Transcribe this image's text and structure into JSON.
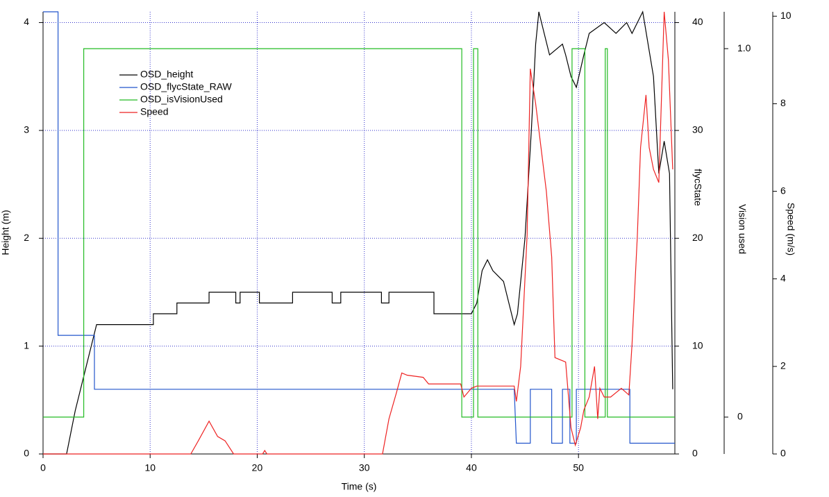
{
  "chart_data": {
    "type": "line",
    "xlabel": "Time (s)",
    "ylabel": "Height (m)",
    "y2label": "flycState",
    "y3label": "Vision used",
    "y4label": "Speed (m/s)",
    "xlim": [
      0,
      59
    ],
    "xticks": [
      0,
      10,
      20,
      30,
      40,
      50
    ],
    "ylim": [
      0,
      4.1
    ],
    "yticks": [
      0,
      1,
      2,
      3,
      4
    ],
    "y2lim": [
      0,
      41
    ],
    "y2ticks": [
      0,
      10,
      20,
      30,
      40
    ],
    "y3lim": [
      -0.1,
      1.1
    ],
    "y3ticks": [
      0,
      {
        "value": 1,
        "label": "1.0"
      }
    ],
    "y4lim": [
      0,
      10.1
    ],
    "y4ticks": [
      0,
      2,
      4,
      6,
      8,
      10
    ],
    "grid": true,
    "series": [
      {
        "name": "OSD_height",
        "color": "#000000",
        "axis": "y",
        "x": [
          0,
          2.2,
          3,
          4,
          5,
          10.3,
          10.3,
          12.5,
          12.5,
          15.5,
          15.5,
          18,
          18,
          18.4,
          18.4,
          20.2,
          20.2,
          23.3,
          23.3,
          27,
          27,
          27.8,
          27.8,
          31.6,
          31.6,
          32.3,
          32.3,
          36.5,
          36.5,
          40,
          40.5,
          41,
          41.5,
          42,
          43,
          43.5,
          44,
          44.3,
          45,
          45.6,
          46,
          46.3,
          46.8,
          47.3,
          48.5,
          48.8,
          49.3,
          49.8,
          50.5,
          51,
          52.4,
          53.5,
          54.5,
          55,
          56,
          57,
          57.5,
          58,
          58.5,
          58.8
        ],
        "values": [
          0,
          0,
          0.4,
          0.8,
          1.2,
          1.2,
          1.3,
          1.3,
          1.4,
          1.4,
          1.5,
          1.5,
          1.4,
          1.4,
          1.5,
          1.5,
          1.4,
          1.4,
          1.5,
          1.5,
          1.4,
          1.4,
          1.5,
          1.5,
          1.4,
          1.4,
          1.5,
          1.5,
          1.3,
          1.3,
          1.4,
          1.7,
          1.8,
          1.7,
          1.6,
          1.4,
          1.2,
          1.3,
          2,
          3,
          3.8,
          4.1,
          3.9,
          3.7,
          3.8,
          3.7,
          3.5,
          3.4,
          3.7,
          3.9,
          4,
          3.9,
          4,
          3.9,
          4.1,
          3.5,
          2.6,
          2.9,
          2.6,
          0.6
        ]
      },
      {
        "name": "OSD_flycState_RAW",
        "color": "#2255cc",
        "axis": "y2",
        "x": [
          0,
          1.4,
          1.4,
          4.8,
          4.8,
          44,
          44.2,
          45.5,
          45.5,
          47.5,
          47.5,
          48.5,
          48.5,
          49.2,
          49.2,
          49.8,
          49.8,
          54.8,
          54.8,
          59
        ],
        "values": [
          41,
          41,
          11,
          11,
          6,
          6,
          1,
          1,
          6,
          6,
          1,
          1,
          6,
          6,
          1,
          1,
          6,
          6,
          1,
          1
        ]
      },
      {
        "name": "OSD_isVisionUsed",
        "color": "#22bb22",
        "axis": "y3",
        "x": [
          0,
          3.8,
          3.8,
          39.1,
          39.1,
          40.2,
          40.2,
          40.6,
          40.6,
          49.4,
          49.4,
          50.6,
          50.6,
          52.5,
          52.5,
          52.7,
          52.7,
          59
        ],
        "values": [
          0,
          0,
          1,
          1,
          0,
          0,
          1,
          1,
          0,
          0,
          1,
          1,
          0,
          0,
          1,
          1,
          0,
          0
        ]
      },
      {
        "name": "Speed",
        "color": "#ee2222",
        "axis": "y4",
        "x": [
          0,
          13.8,
          14.5,
          15.5,
          16.3,
          17,
          17.8,
          20.5,
          20.7,
          20.9,
          31.7,
          32.3,
          33,
          33.5,
          34,
          35.5,
          36,
          39,
          39.3,
          40,
          40.5,
          44,
          44.2,
          44.6,
          45.2,
          45.5,
          46,
          46.5,
          47,
          47.5,
          47.8,
          48.8,
          49,
          49.3,
          49.7,
          50.2,
          50.5,
          51,
          51.5,
          51.8,
          52,
          52.4,
          53,
          54,
          54.7,
          55,
          55.5,
          55.8,
          56.3,
          56.6,
          57,
          57.5,
          58,
          58.4,
          58.8
        ],
        "values": [
          0,
          0,
          0.3,
          0.75,
          0.4,
          0.3,
          0,
          0,
          0.08,
          0,
          0,
          0.8,
          1.4,
          1.85,
          1.8,
          1.75,
          1.6,
          1.6,
          1.3,
          1.5,
          1.55,
          1.55,
          1.2,
          2,
          5,
          8.8,
          8,
          7,
          6,
          4.5,
          2.2,
          2.1,
          1.5,
          0.6,
          0.2,
          0.6,
          1,
          1.3,
          2,
          0.8,
          1.5,
          1.3,
          1.3,
          1.5,
          1.35,
          2.5,
          5,
          7,
          8.2,
          7,
          6.5,
          6.2,
          10.1,
          9,
          6.5
        ]
      }
    ]
  }
}
